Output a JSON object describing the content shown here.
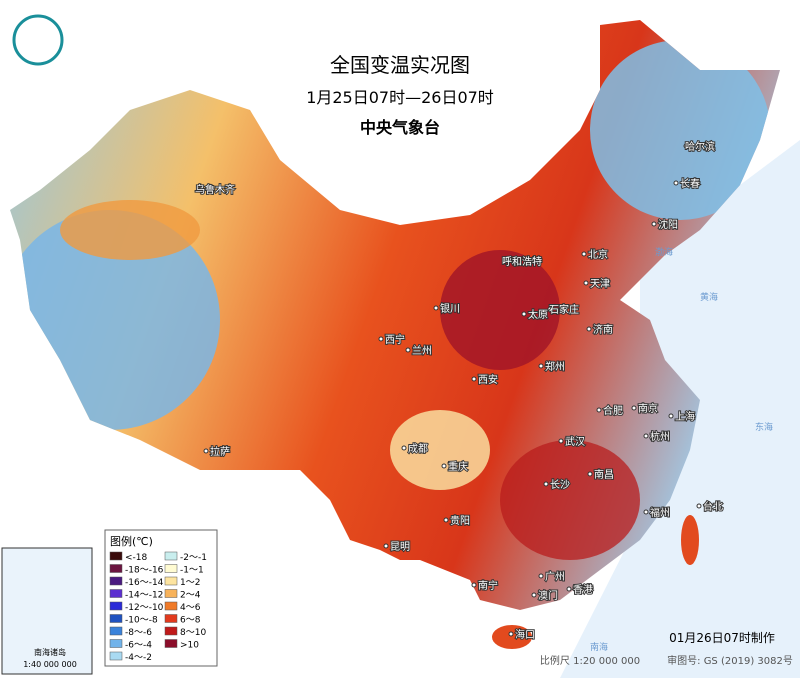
{
  "header": {
    "title": "全国变温实况图",
    "subtitle": "1月25日07时—26日07时",
    "agency": "中央气象台"
  },
  "legend": {
    "title": "图例(℃)",
    "items": [
      {
        "label": "<-18",
        "color": "#3a0b0b"
      },
      {
        "label": "-18～-16",
        "color": "#6b1540"
      },
      {
        "label": "-16～-14",
        "color": "#4a1a80"
      },
      {
        "label": "-14～-12",
        "color": "#5c2fd0"
      },
      {
        "label": "-12～-10",
        "color": "#2b2bd8"
      },
      {
        "label": "-10～-8",
        "color": "#1f52c0"
      },
      {
        "label": "-8～-6",
        "color": "#3a82da"
      },
      {
        "label": "-6～-4",
        "color": "#71b3ea"
      },
      {
        "label": "-4～-2",
        "color": "#a9daf2"
      },
      {
        "label": "-2～-1",
        "color": "#c9eeee"
      },
      {
        "label": "-1～1",
        "color": "#fffbd2"
      },
      {
        "label": "1～2",
        "color": "#fde4a0"
      },
      {
        "label": "2～4",
        "color": "#f7b25a"
      },
      {
        "label": "4～6",
        "color": "#f07a28"
      },
      {
        "label": "6～8",
        "color": "#e23a1e"
      },
      {
        "label": "8～10",
        "color": "#c01a1a"
      },
      {
        "label": ">10",
        "color": "#8b0d2a"
      }
    ]
  },
  "cities": [
    "乌鲁木齐",
    "哈尔滨",
    "长春",
    "沈阳",
    "北京",
    "天津",
    "呼和浩特",
    "银川",
    "太原",
    "石家庄",
    "济南",
    "西宁",
    "兰州",
    "西安",
    "郑州",
    "合肥",
    "南京",
    "上海",
    "杭州",
    "武汉",
    "拉萨",
    "成都",
    "重庆",
    "贵阳",
    "长沙",
    "南昌",
    "福州",
    "台北",
    "昆明",
    "南宁",
    "广州",
    "香港",
    "澳门",
    "海口"
  ],
  "seas": [
    "渤海",
    "黄海",
    "东海",
    "南海"
  ],
  "inset": {
    "title": "南海诸岛",
    "scale": "1:40 000 000"
  },
  "footer": {
    "made": "01月26日07时制作",
    "scale": "比例尺 1:20 000 000",
    "approval": "审图号: GS (2019) 3082号"
  }
}
